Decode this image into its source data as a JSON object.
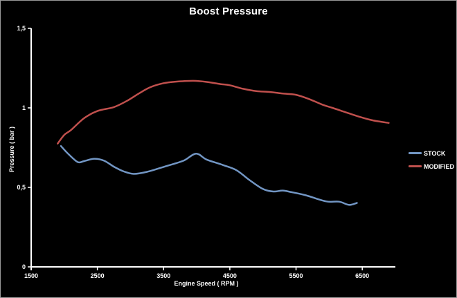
{
  "window": {
    "background": "#000000",
    "border_color": "#9a9a9a"
  },
  "chart_data": {
    "type": "line",
    "title": "Boost Pressure",
    "xlabel": "Engine Speed ( RPM )",
    "ylabel": "Pressure ( bar )",
    "xlim": [
      1500,
      7000
    ],
    "ylim": [
      0,
      1.5
    ],
    "grid": false,
    "legend_position": "right",
    "background_color": "#000000",
    "axis_color": "#ffffff",
    "text_color": "#ffffff",
    "x_ticks": [
      {
        "value": 1500,
        "label": "1500"
      },
      {
        "value": 2500,
        "label": "2500"
      },
      {
        "value": 3500,
        "label": "3500"
      },
      {
        "value": 4500,
        "label": "4500"
      },
      {
        "value": 5500,
        "label": "5500"
      },
      {
        "value": 6500,
        "label": "6500"
      }
    ],
    "y_ticks": [
      {
        "value": 0,
        "label": "0"
      },
      {
        "value": 0.5,
        "label": "0,5"
      },
      {
        "value": 1,
        "label": "1"
      },
      {
        "value": 1.5,
        "label": "1,5"
      }
    ],
    "series": [
      {
        "name": "STOCK",
        "color": "#7296C4",
        "points": [
          [
            1950,
            0.76
          ],
          [
            2050,
            0.715
          ],
          [
            2200,
            0.66
          ],
          [
            2300,
            0.665
          ],
          [
            2450,
            0.68
          ],
          [
            2600,
            0.668
          ],
          [
            2750,
            0.63
          ],
          [
            2900,
            0.6
          ],
          [
            3050,
            0.585
          ],
          [
            3250,
            0.598
          ],
          [
            3550,
            0.635
          ],
          [
            3800,
            0.668
          ],
          [
            3990,
            0.712
          ],
          [
            4150,
            0.675
          ],
          [
            4400,
            0.64
          ],
          [
            4600,
            0.608
          ],
          [
            4800,
            0.545
          ],
          [
            5000,
            0.49
          ],
          [
            5160,
            0.474
          ],
          [
            5300,
            0.48
          ],
          [
            5430,
            0.47
          ],
          [
            5650,
            0.45
          ],
          [
            5950,
            0.412
          ],
          [
            6150,
            0.41
          ],
          [
            6300,
            0.39
          ],
          [
            6420,
            0.402
          ]
        ]
      },
      {
        "name": "MODIFIED",
        "color": "#C0504D",
        "points": [
          [
            1900,
            0.775
          ],
          [
            2000,
            0.83
          ],
          [
            2100,
            0.86
          ],
          [
            2300,
            0.935
          ],
          [
            2500,
            0.98
          ],
          [
            2750,
            1.005
          ],
          [
            2950,
            1.045
          ],
          [
            3125,
            1.09
          ],
          [
            3300,
            1.13
          ],
          [
            3500,
            1.155
          ],
          [
            3700,
            1.165
          ],
          [
            3950,
            1.17
          ],
          [
            4150,
            1.163
          ],
          [
            4350,
            1.15
          ],
          [
            4500,
            1.142
          ],
          [
            4700,
            1.12
          ],
          [
            4900,
            1.105
          ],
          [
            5100,
            1.1
          ],
          [
            5300,
            1.09
          ],
          [
            5500,
            1.082
          ],
          [
            5700,
            1.055
          ],
          [
            5900,
            1.02
          ],
          [
            6050,
            1.0
          ],
          [
            6250,
            0.972
          ],
          [
            6450,
            0.945
          ],
          [
            6650,
            0.922
          ],
          [
            6900,
            0.905
          ]
        ]
      }
    ]
  }
}
